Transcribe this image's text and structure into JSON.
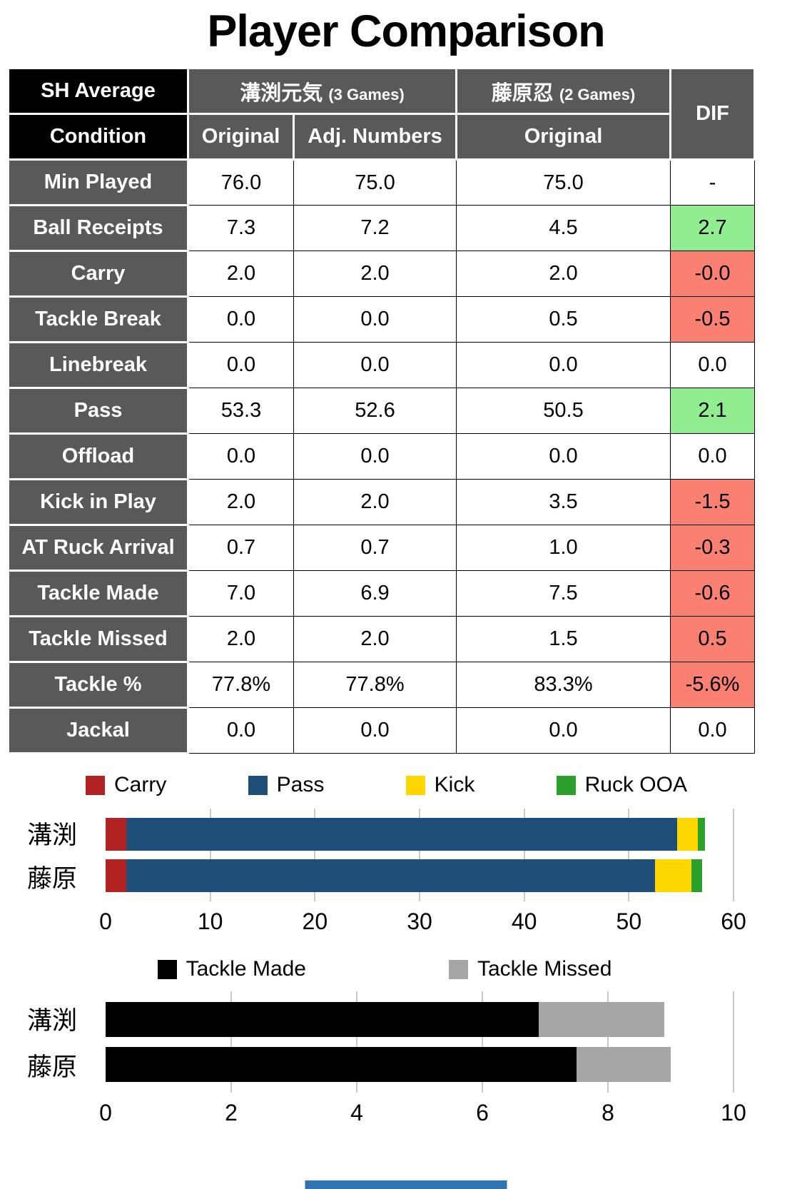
{
  "title": "Player Comparison",
  "colors": {
    "header_gray": "#595959",
    "corner_black": "#000000",
    "positive_green": "#90EE90",
    "negative_salmon": "#FA8072",
    "gridline_gray": "#C9C9C9",
    "footer_blue": "#2E74B5"
  },
  "table": {
    "corner": {
      "line1": "SH Average",
      "line2": "Condition"
    },
    "player1": {
      "name": "溝渕元気",
      "games": "(3 Games)"
    },
    "player2": {
      "name": "藤原忍",
      "games": "(2 Games)"
    },
    "subheaders": {
      "p1_original": "Original",
      "p1_adjusted": "Adj. Numbers",
      "p2_original": "Original"
    },
    "dif_label": "DIF",
    "rows": [
      {
        "label": "Min Played",
        "p1_original": "76.0",
        "p1_adjusted": "75.0",
        "p2_original": "75.0",
        "dif": "-",
        "trend": "neutral"
      },
      {
        "label": "Ball Receipts",
        "p1_original": "7.3",
        "p1_adjusted": "7.2",
        "p2_original": "4.5",
        "dif": "2.7",
        "trend": "positive"
      },
      {
        "label": "Carry",
        "p1_original": "2.0",
        "p1_adjusted": "2.0",
        "p2_original": "2.0",
        "dif": "-0.0",
        "trend": "negative"
      },
      {
        "label": "Tackle Break",
        "p1_original": "0.0",
        "p1_adjusted": "0.0",
        "p2_original": "0.5",
        "dif": "-0.5",
        "trend": "negative"
      },
      {
        "label": "Linebreak",
        "p1_original": "0.0",
        "p1_adjusted": "0.0",
        "p2_original": "0.0",
        "dif": "0.0",
        "trend": "neutral"
      },
      {
        "label": "Pass",
        "p1_original": "53.3",
        "p1_adjusted": "52.6",
        "p2_original": "50.5",
        "dif": "2.1",
        "trend": "positive"
      },
      {
        "label": "Offload",
        "p1_original": "0.0",
        "p1_adjusted": "0.0",
        "p2_original": "0.0",
        "dif": "0.0",
        "trend": "neutral"
      },
      {
        "label": "Kick in Play",
        "p1_original": "2.0",
        "p1_adjusted": "2.0",
        "p2_original": "3.5",
        "dif": "-1.5",
        "trend": "negative"
      },
      {
        "label": "AT Ruck Arrival",
        "p1_original": "0.7",
        "p1_adjusted": "0.7",
        "p2_original": "1.0",
        "dif": "-0.3",
        "trend": "negative"
      },
      {
        "label": "Tackle Made",
        "p1_original": "7.0",
        "p1_adjusted": "6.9",
        "p2_original": "7.5",
        "dif": "-0.6",
        "trend": "negative"
      },
      {
        "label": "Tackle Missed",
        "p1_original": "2.0",
        "p1_adjusted": "2.0",
        "p2_original": "1.5",
        "dif": "0.5",
        "trend": "negative"
      },
      {
        "label": "Tackle %",
        "p1_original": "77.8%",
        "p1_adjusted": "77.8%",
        "p2_original": "83.3%",
        "dif": "-5.6%",
        "trend": "negative"
      },
      {
        "label": "Jackal",
        "p1_original": "0.0",
        "p1_adjusted": "0.0",
        "p2_original": "0.0",
        "dif": "0.0",
        "trend": "neutral"
      }
    ]
  },
  "chart_data": [
    {
      "type": "bar",
      "stacked": true,
      "orientation": "horizontal",
      "title": "",
      "categories": [
        "溝渕",
        "藤原"
      ],
      "series": [
        {
          "name": "Carry",
          "color": "#B22222",
          "values": [
            2.0,
            2.0
          ]
        },
        {
          "name": "Pass",
          "color": "#1F4E79",
          "values": [
            52.6,
            50.5
          ]
        },
        {
          "name": "Kick",
          "color": "#FFD700",
          "values": [
            2.0,
            3.5
          ]
        },
        {
          "name": "Ruck OOA",
          "color": "#2CA02C",
          "values": [
            0.7,
            1.0
          ]
        }
      ],
      "xlim": [
        0,
        60
      ],
      "xticks": [
        0,
        10,
        20,
        30,
        40,
        50,
        60
      ],
      "grid": true,
      "legend_position": "top"
    },
    {
      "type": "bar",
      "stacked": true,
      "orientation": "horizontal",
      "title": "",
      "categories": [
        "溝渕",
        "藤原"
      ],
      "series": [
        {
          "name": "Tackle Made",
          "color": "#000000",
          "values": [
            6.9,
            7.5
          ]
        },
        {
          "name": "Tackle Missed",
          "color": "#A6A6A6",
          "values": [
            2.0,
            1.5
          ]
        }
      ],
      "xlim": [
        0,
        10
      ],
      "xticks": [
        0,
        2,
        4,
        6,
        8,
        10
      ],
      "grid": true,
      "legend_position": "top"
    }
  ]
}
